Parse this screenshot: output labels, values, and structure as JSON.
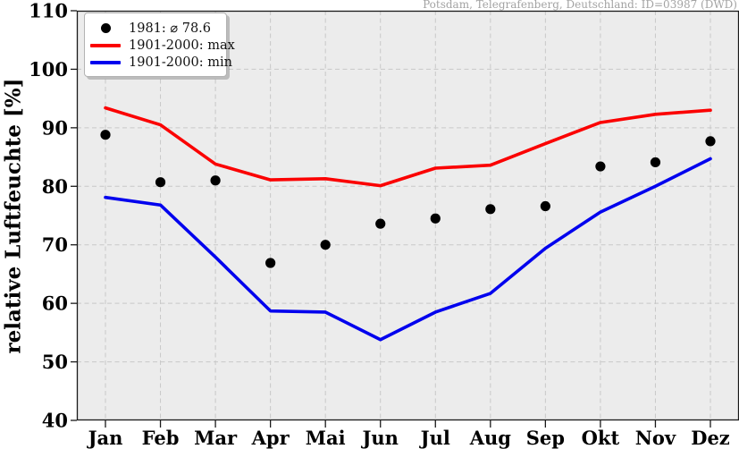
{
  "station_annotation": "Potsdam, Telegrafenberg, Deutschland: ID=03987 (DWD)",
  "y_axis_label": "relative Luftfeuchte [%]",
  "legend": {
    "items": [
      {
        "label": "1981: ⌀ 78.6",
        "marker": "dot",
        "color": "#000000"
      },
      {
        "label": "1901-2000: max",
        "marker": "line",
        "color": "#fb0000"
      },
      {
        "label": "1901-2000: min",
        "marker": "line",
        "color": "#0000ee"
      }
    ]
  },
  "chart_data": {
    "type": "line",
    "title": "",
    "xlabel": "",
    "ylabel": "relative Luftfeuchte [%]",
    "categories": [
      "Jan",
      "Feb",
      "Mar",
      "Apr",
      "Mai",
      "Jun",
      "Jul",
      "Aug",
      "Sep",
      "Okt",
      "Nov",
      "Dez"
    ],
    "series": [
      {
        "name": "1981: ⌀ 78.6",
        "type": "scatter",
        "color": "#000000",
        "mean": 78.6,
        "values": [
          88.8,
          80.7,
          81.0,
          66.9,
          70.0,
          73.6,
          74.5,
          76.1,
          76.6,
          83.4,
          84.1,
          87.7
        ]
      },
      {
        "name": "1901-2000: max",
        "type": "line",
        "color": "#fb0000",
        "values": [
          93.4,
          90.5,
          83.8,
          81.1,
          81.3,
          80.1,
          83.1,
          83.6,
          87.3,
          90.9,
          92.3,
          93.0
        ]
      },
      {
        "name": "1901-2000: min",
        "type": "line",
        "color": "#0000ee",
        "values": [
          78.1,
          76.8,
          67.9,
          58.7,
          58.5,
          53.8,
          58.5,
          61.7,
          69.4,
          75.6,
          80.0,
          84.7
        ]
      }
    ],
    "ylim": [
      40,
      110
    ],
    "yticks": [
      40,
      50,
      60,
      70,
      80,
      90,
      100,
      110
    ],
    "grid": true,
    "legend_position": "upper left",
    "plot_bg": "#ececec",
    "grid_color": "#c8c8c8",
    "spine_color": "#1a1a1a"
  }
}
